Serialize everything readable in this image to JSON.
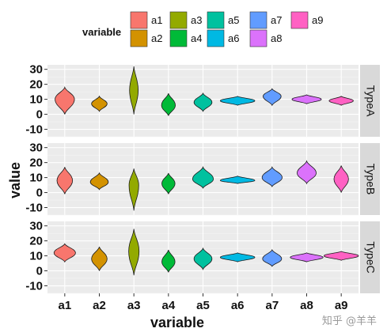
{
  "chart_data": {
    "type": "violin",
    "xlabel": "variable",
    "ylabel": "value",
    "categories": [
      "a1",
      "a2",
      "a3",
      "a4",
      "a5",
      "a6",
      "a7",
      "a8",
      "a9"
    ],
    "colors": [
      "#F8766D",
      "#D39200",
      "#93AA00",
      "#00BA38",
      "#00C19F",
      "#00B9E3",
      "#619CFF",
      "#DB72FB",
      "#FF61C3"
    ],
    "ylim": [
      -15,
      33
    ],
    "yticks": [
      -10,
      0,
      10,
      20,
      30
    ],
    "facets": [
      "TypeA",
      "TypeB",
      "TypeC"
    ],
    "legend": {
      "title": "variable",
      "position": "top",
      "entries": [
        "a1",
        "a2",
        "a3",
        "a4",
        "a5",
        "a6",
        "a7",
        "a8",
        "a9"
      ]
    },
    "series": [
      {
        "facet": "TypeA",
        "category": "a1",
        "center": 10,
        "min": 0,
        "max": 18,
        "width_frac": 0.56
      },
      {
        "facet": "TypeA",
        "category": "a2",
        "center": 7,
        "min": 2,
        "max": 12,
        "width_frac": 0.45
      },
      {
        "facet": "TypeA",
        "category": "a3",
        "center": 16,
        "min": 0,
        "max": 32,
        "width_frac": 0.25
      },
      {
        "facet": "TypeA",
        "category": "a4",
        "center": 6,
        "min": -1,
        "max": 14,
        "width_frac": 0.4
      },
      {
        "facet": "TypeA",
        "category": "a5",
        "center": 8,
        "min": 2,
        "max": 14,
        "width_frac": 0.52
      },
      {
        "facet": "TypeA",
        "category": "a6",
        "center": 9,
        "min": 6,
        "max": 12,
        "width_frac": 1.0
      },
      {
        "facet": "TypeA",
        "category": "a7",
        "center": 12,
        "min": 6,
        "max": 17,
        "width_frac": 0.52
      },
      {
        "facet": "TypeA",
        "category": "a8",
        "center": 10,
        "min": 7,
        "max": 13,
        "width_frac": 0.85
      },
      {
        "facet": "TypeA",
        "category": "a9",
        "center": 9,
        "min": 6,
        "max": 12,
        "width_frac": 0.7
      },
      {
        "facet": "TypeB",
        "category": "a1",
        "center": 8,
        "min": -1,
        "max": 17,
        "width_frac": 0.45
      },
      {
        "facet": "TypeB",
        "category": "a2",
        "center": 7,
        "min": 2,
        "max": 13,
        "width_frac": 0.52
      },
      {
        "facet": "TypeB",
        "category": "a3",
        "center": 5,
        "min": -12,
        "max": 16,
        "width_frac": 0.28
      },
      {
        "facet": "TypeB",
        "category": "a4",
        "center": 6,
        "min": -1,
        "max": 13,
        "width_frac": 0.38
      },
      {
        "facet": "TypeB",
        "category": "a5",
        "center": 9,
        "min": 3,
        "max": 17,
        "width_frac": 0.6
      },
      {
        "facet": "TypeB",
        "category": "a6",
        "center": 8,
        "min": 6,
        "max": 11,
        "width_frac": 1.0
      },
      {
        "facet": "TypeB",
        "category": "a7",
        "center": 10,
        "min": 4,
        "max": 17,
        "width_frac": 0.58
      },
      {
        "facet": "TypeB",
        "category": "a8",
        "center": 13,
        "min": 6,
        "max": 21,
        "width_frac": 0.55
      },
      {
        "facet": "TypeB",
        "category": "a9",
        "center": 9,
        "min": 0,
        "max": 18,
        "width_frac": 0.42
      },
      {
        "facet": "TypeC",
        "category": "a1",
        "center": 12,
        "min": 6,
        "max": 18,
        "width_frac": 0.62
      },
      {
        "facet": "TypeC",
        "category": "a2",
        "center": 8,
        "min": 0,
        "max": 16,
        "width_frac": 0.45
      },
      {
        "facet": "TypeC",
        "category": "a3",
        "center": 13,
        "min": -3,
        "max": 28,
        "width_frac": 0.3
      },
      {
        "facet": "TypeC",
        "category": "a4",
        "center": 6,
        "min": -1,
        "max": 14,
        "width_frac": 0.38
      },
      {
        "facet": "TypeC",
        "category": "a5",
        "center": 8,
        "min": 1,
        "max": 15,
        "width_frac": 0.52
      },
      {
        "facet": "TypeC",
        "category": "a6",
        "center": 9,
        "min": 6,
        "max": 12,
        "width_frac": 1.0
      },
      {
        "facet": "TypeC",
        "category": "a7",
        "center": 8,
        "min": 3,
        "max": 14,
        "width_frac": 0.55
      },
      {
        "facet": "TypeC",
        "category": "a8",
        "center": 9,
        "min": 6,
        "max": 12,
        "width_frac": 0.95
      },
      {
        "facet": "TypeC",
        "category": "a9",
        "center": 10,
        "min": 7,
        "max": 13,
        "width_frac": 1.0
      }
    ]
  },
  "watermark": "知乎 @羊羊"
}
